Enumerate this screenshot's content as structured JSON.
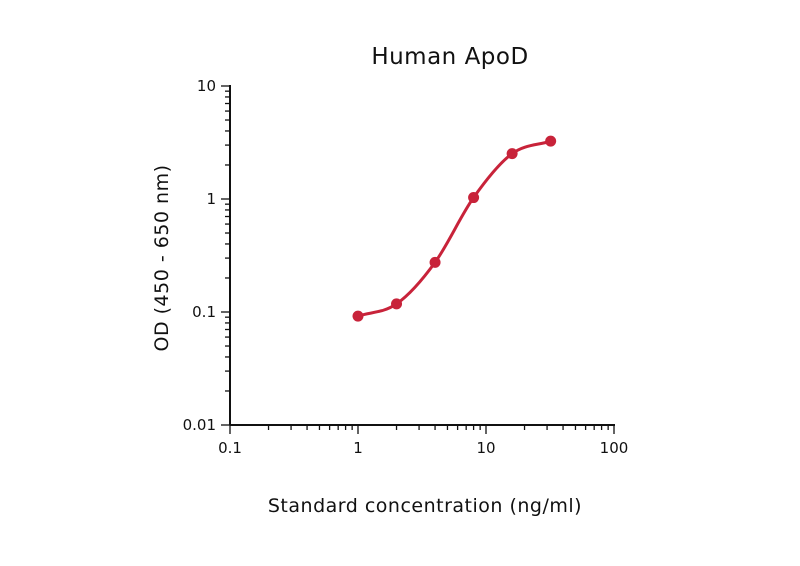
{
  "chart_data": {
    "type": "scatter",
    "title": "Human ApoD",
    "xlabel": "Standard concentration (ng/ml)",
    "ylabel": "OD (450 - 650 nm)",
    "xscale": "log",
    "yscale": "log",
    "xlim": [
      0.1,
      100
    ],
    "ylim": [
      0.01,
      10
    ],
    "xticks": [
      {
        "value": 0.1,
        "label": "0.1"
      },
      {
        "value": 1,
        "label": "1"
      },
      {
        "value": 10,
        "label": "10"
      },
      {
        "value": 100,
        "label": "100"
      }
    ],
    "yticks": [
      {
        "value": 0.01,
        "label": "0.01"
      },
      {
        "value": 0.1,
        "label": "0.1"
      },
      {
        "value": 1,
        "label": "1"
      },
      {
        "value": 10,
        "label": "10"
      }
    ],
    "grid": false,
    "color": "#c8233a",
    "points": [
      {
        "x": 1,
        "y": 0.092
      },
      {
        "x": 2,
        "y": 0.118
      },
      {
        "x": 4,
        "y": 0.275
      },
      {
        "x": 8,
        "y": 1.03
      },
      {
        "x": 16,
        "y": 2.52
      },
      {
        "x": 32,
        "y": 3.25
      }
    ],
    "fit_curve": true
  }
}
